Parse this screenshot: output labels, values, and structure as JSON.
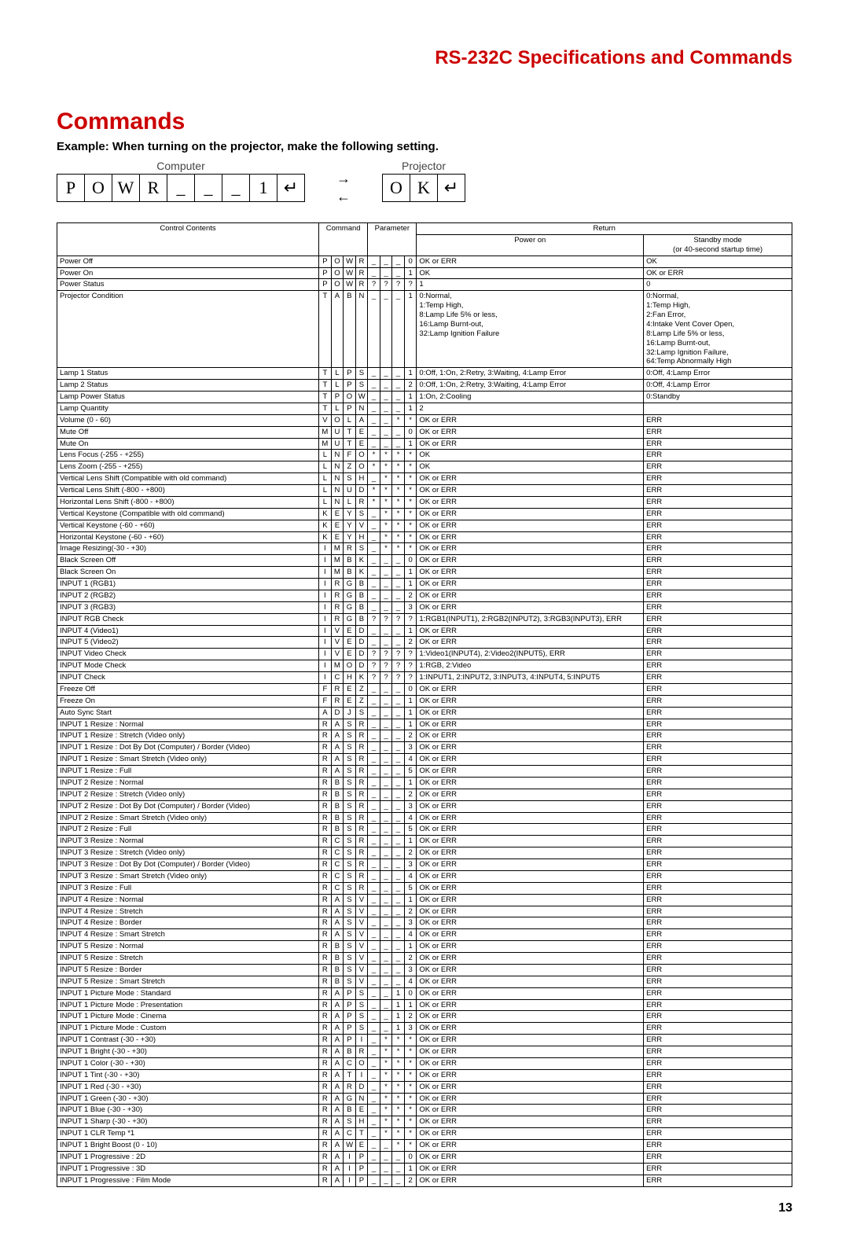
{
  "header": "RS-232C Specifications and Commands",
  "section_title": "Commands",
  "example_line": "Example: When turning on the projector, make the following setting.",
  "diagram": {
    "computer_label": "Computer",
    "projector_label": "Projector",
    "computer_boxes": [
      "P",
      "O",
      "W",
      "R",
      "_",
      "_",
      "_",
      "1",
      "↵"
    ],
    "projector_boxes": [
      "O",
      "K",
      "↵"
    ]
  },
  "table_headers": {
    "control": "Control Contents",
    "command": "Command",
    "parameter": "Parameter",
    "return": "Return",
    "power_on": "Power on",
    "standby": "Standby mode\n(or 40-second startup time)"
  },
  "rows": [
    {
      "c": "Power Off",
      "cmd": [
        "P",
        "O",
        "W",
        "R"
      ],
      "par": [
        "_",
        "_",
        "_",
        "0"
      ],
      "pon": "OK or ERR",
      "stb": "OK"
    },
    {
      "c": "Power On",
      "cmd": [
        "P",
        "O",
        "W",
        "R"
      ],
      "par": [
        "_",
        "_",
        "_",
        "1"
      ],
      "pon": "OK",
      "stb": "OK or ERR"
    },
    {
      "c": "Power Status",
      "cmd": [
        "P",
        "O",
        "W",
        "R"
      ],
      "par": [
        "?",
        "?",
        "?",
        "?"
      ],
      "pon": "1",
      "stb": "0"
    },
    {
      "c": "Projector Condition",
      "cmd": [
        "T",
        "A",
        "B",
        "N"
      ],
      "par": [
        "_",
        "_",
        "_",
        "1"
      ],
      "pon": "0:Normal,\n1:Temp High,\n8:Lamp Life 5% or less,\n16:Lamp Burnt-out,\n32:Lamp Ignition Failure",
      "stb": "0:Normal,\n1:Temp High,\n2:Fan Error,\n4:Intake Vent Cover Open,\n8:Lamp Life 5% or less,\n16:Lamp Burnt-out,\n32:Lamp Ignition Failure,\n64:Temp Abnormally High"
    },
    {
      "c": "Lamp 1 Status",
      "cmd": [
        "T",
        "L",
        "P",
        "S"
      ],
      "par": [
        "_",
        "_",
        "_",
        "1"
      ],
      "pon": "0:Off, 1:On, 2:Retry, 3:Waiting, 4:Lamp Error",
      "stb": "0:Off, 4:Lamp Error"
    },
    {
      "c": "Lamp 2 Status",
      "cmd": [
        "T",
        "L",
        "P",
        "S"
      ],
      "par": [
        "_",
        "_",
        "_",
        "2"
      ],
      "pon": "0:Off, 1:On, 2:Retry, 3:Waiting, 4:Lamp Error",
      "stb": "0:Off, 4:Lamp Error"
    },
    {
      "c": "Lamp Power Status",
      "cmd": [
        "T",
        "P",
        "O",
        "W"
      ],
      "par": [
        "_",
        "_",
        "_",
        "1"
      ],
      "pon": "1:On, 2:Cooling",
      "stb": "0:Standby"
    },
    {
      "c": "Lamp Quantity",
      "cmd": [
        "T",
        "L",
        "P",
        "N"
      ],
      "par": [
        "_",
        "_",
        "_",
        "1"
      ],
      "pon": "2",
      "stb": ""
    },
    {
      "c": "Volume (0 - 60)",
      "cmd": [
        "V",
        "O",
        "L",
        "A"
      ],
      "par": [
        "_",
        "_",
        "*",
        "*"
      ],
      "pon": "OK or ERR",
      "stb": "ERR"
    },
    {
      "c": "Mute Off",
      "cmd": [
        "M",
        "U",
        "T",
        "E"
      ],
      "par": [
        "_",
        "_",
        "_",
        "0"
      ],
      "pon": "OK or ERR",
      "stb": "ERR"
    },
    {
      "c": "Mute On",
      "cmd": [
        "M",
        "U",
        "T",
        "E"
      ],
      "par": [
        "_",
        "_",
        "_",
        "1"
      ],
      "pon": "OK or ERR",
      "stb": "ERR"
    },
    {
      "c": "Lens Focus (-255 - +255)",
      "cmd": [
        "L",
        "N",
        "F",
        "O"
      ],
      "par": [
        "*",
        "*",
        "*",
        "*"
      ],
      "pon": "OK",
      "stb": "ERR"
    },
    {
      "c": "Lens Zoom (-255 - +255)",
      "cmd": [
        "L",
        "N",
        "Z",
        "O"
      ],
      "par": [
        "*",
        "*",
        "*",
        "*"
      ],
      "pon": "OK",
      "stb": "ERR"
    },
    {
      "c": "Vertical Lens Shift (Compatible with old command)",
      "cmd": [
        "L",
        "N",
        "S",
        "H"
      ],
      "par": [
        "_",
        "*",
        "*",
        "*"
      ],
      "pon": "OK or ERR",
      "stb": "ERR"
    },
    {
      "c": "Vertical Lens Shift (-800 - +800)",
      "cmd": [
        "L",
        "N",
        "U",
        "D"
      ],
      "par": [
        "*",
        "*",
        "*",
        "*"
      ],
      "pon": "OK or ERR",
      "stb": "ERR"
    },
    {
      "c": "Horizontal Lens Shift (-800 - +800)",
      "cmd": [
        "L",
        "N",
        "L",
        "R"
      ],
      "par": [
        "*",
        "*",
        "*",
        "*"
      ],
      "pon": "OK or ERR",
      "stb": "ERR"
    },
    {
      "c": "Vertical Keystone (Compatible with old command)",
      "cmd": [
        "K",
        "E",
        "Y",
        "S"
      ],
      "par": [
        "_",
        "*",
        "*",
        "*"
      ],
      "pon": "OK or ERR",
      "stb": "ERR"
    },
    {
      "c": "Vertical Keystone (-60 - +60)",
      "cmd": [
        "K",
        "E",
        "Y",
        "V"
      ],
      "par": [
        "_",
        "*",
        "*",
        "*"
      ],
      "pon": "OK or ERR",
      "stb": "ERR"
    },
    {
      "c": "Horizontal Keystone (-60 - +60)",
      "cmd": [
        "K",
        "E",
        "Y",
        "H"
      ],
      "par": [
        "_",
        "*",
        "*",
        "*"
      ],
      "pon": "OK or ERR",
      "stb": "ERR"
    },
    {
      "c": "Image Resizing(-30 - +30)",
      "cmd": [
        "I",
        "M",
        "R",
        "S"
      ],
      "par": [
        "_",
        "*",
        "*",
        "*"
      ],
      "pon": "OK or ERR",
      "stb": "ERR"
    },
    {
      "c": "Black Screen Off",
      "cmd": [
        "I",
        "M",
        "B",
        "K"
      ],
      "par": [
        "_",
        "_",
        "_",
        "0"
      ],
      "pon": "OK or ERR",
      "stb": "ERR"
    },
    {
      "c": "Black Screen On",
      "cmd": [
        "I",
        "M",
        "B",
        "K"
      ],
      "par": [
        "_",
        "_",
        "_",
        "1"
      ],
      "pon": "OK or ERR",
      "stb": "ERR"
    },
    {
      "c": "INPUT 1 (RGB1)",
      "cmd": [
        "I",
        "R",
        "G",
        "B"
      ],
      "par": [
        "_",
        "_",
        "_",
        "1"
      ],
      "pon": "OK or ERR",
      "stb": "ERR"
    },
    {
      "c": "INPUT 2 (RGB2)",
      "cmd": [
        "I",
        "R",
        "G",
        "B"
      ],
      "par": [
        "_",
        "_",
        "_",
        "2"
      ],
      "pon": "OK or ERR",
      "stb": "ERR"
    },
    {
      "c": "INPUT 3 (RGB3)",
      "cmd": [
        "I",
        "R",
        "G",
        "B"
      ],
      "par": [
        "_",
        "_",
        "_",
        "3"
      ],
      "pon": "OK or ERR",
      "stb": "ERR"
    },
    {
      "c": "INPUT RGB Check",
      "cmd": [
        "I",
        "R",
        "G",
        "B"
      ],
      "par": [
        "?",
        "?",
        "?",
        "?"
      ],
      "pon": "1:RGB1(INPUT1), 2:RGB2(INPUT2), 3:RGB3(INPUT3), ERR",
      "stb": "ERR"
    },
    {
      "c": "INPUT 4 (Video1)",
      "cmd": [
        "I",
        "V",
        "E",
        "D"
      ],
      "par": [
        "_",
        "_",
        "_",
        "1"
      ],
      "pon": "OK or ERR",
      "stb": "ERR"
    },
    {
      "c": "INPUT 5 (Video2)",
      "cmd": [
        "I",
        "V",
        "E",
        "D"
      ],
      "par": [
        "_",
        "_",
        "_",
        "2"
      ],
      "pon": "OK or ERR",
      "stb": "ERR"
    },
    {
      "c": "INPUT Video Check",
      "cmd": [
        "I",
        "V",
        "E",
        "D"
      ],
      "par": [
        "?",
        "?",
        "?",
        "?"
      ],
      "pon": "1:Video1(INPUT4), 2:Video2(INPUT5), ERR",
      "stb": "ERR"
    },
    {
      "c": "INPUT Mode Check",
      "cmd": [
        "I",
        "M",
        "O",
        "D"
      ],
      "par": [
        "?",
        "?",
        "?",
        "?"
      ],
      "pon": "1:RGB, 2:Video",
      "stb": "ERR"
    },
    {
      "c": "INPUT Check",
      "cmd": [
        "I",
        "C",
        "H",
        "K"
      ],
      "par": [
        "?",
        "?",
        "?",
        "?"
      ],
      "pon": "1:INPUT1, 2:INPUT2, 3:INPUT3, 4:INPUT4, 5:INPUT5",
      "stb": "ERR"
    },
    {
      "c": "Freeze Off",
      "cmd": [
        "F",
        "R",
        "E",
        "Z"
      ],
      "par": [
        "_",
        "_",
        "_",
        "0"
      ],
      "pon": "OK or ERR",
      "stb": "ERR"
    },
    {
      "c": "Freeze On",
      "cmd": [
        "F",
        "R",
        "E",
        "Z"
      ],
      "par": [
        "_",
        "_",
        "_",
        "1"
      ],
      "pon": "OK or ERR",
      "stb": "ERR"
    },
    {
      "c": "Auto Sync Start",
      "cmd": [
        "A",
        "D",
        "J",
        "S"
      ],
      "par": [
        "_",
        "_",
        "_",
        "1"
      ],
      "pon": "OK or ERR",
      "stb": "ERR"
    },
    {
      "c": "INPUT 1 Resize : Normal",
      "cmd": [
        "R",
        "A",
        "S",
        "R"
      ],
      "par": [
        "_",
        "_",
        "_",
        "1"
      ],
      "pon": "OK or ERR",
      "stb": "ERR"
    },
    {
      "c": "INPUT 1 Resize : Stretch (Video only)",
      "cmd": [
        "R",
        "A",
        "S",
        "R"
      ],
      "par": [
        "_",
        "_",
        "_",
        "2"
      ],
      "pon": "OK or ERR",
      "stb": "ERR"
    },
    {
      "c": "INPUT 1 Resize : Dot By Dot (Computer) / Border (Video)",
      "cmd": [
        "R",
        "A",
        "S",
        "R"
      ],
      "par": [
        "_",
        "_",
        "_",
        "3"
      ],
      "pon": "OK or ERR",
      "stb": "ERR"
    },
    {
      "c": "INPUT 1 Resize : Smart Stretch (Video only)",
      "cmd": [
        "R",
        "A",
        "S",
        "R"
      ],
      "par": [
        "_",
        "_",
        "_",
        "4"
      ],
      "pon": "OK or ERR",
      "stb": "ERR"
    },
    {
      "c": "INPUT 1 Resize : Full",
      "cmd": [
        "R",
        "A",
        "S",
        "R"
      ],
      "par": [
        "_",
        "_",
        "_",
        "5"
      ],
      "pon": "OK or ERR",
      "stb": "ERR"
    },
    {
      "c": "INPUT 2 Resize : Normal",
      "cmd": [
        "R",
        "B",
        "S",
        "R"
      ],
      "par": [
        "_",
        "_",
        "_",
        "1"
      ],
      "pon": "OK or ERR",
      "stb": "ERR"
    },
    {
      "c": "INPUT 2 Resize : Stretch (Video only)",
      "cmd": [
        "R",
        "B",
        "S",
        "R"
      ],
      "par": [
        "_",
        "_",
        "_",
        "2"
      ],
      "pon": "OK or ERR",
      "stb": "ERR"
    },
    {
      "c": "INPUT 2 Resize : Dot By Dot (Computer) / Border (Video)",
      "cmd": [
        "R",
        "B",
        "S",
        "R"
      ],
      "par": [
        "_",
        "_",
        "_",
        "3"
      ],
      "pon": "OK or ERR",
      "stb": "ERR"
    },
    {
      "c": "INPUT 2 Resize : Smart Stretch (Video only)",
      "cmd": [
        "R",
        "B",
        "S",
        "R"
      ],
      "par": [
        "_",
        "_",
        "_",
        "4"
      ],
      "pon": "OK or ERR",
      "stb": "ERR"
    },
    {
      "c": "INPUT 2 Resize : Full",
      "cmd": [
        "R",
        "B",
        "S",
        "R"
      ],
      "par": [
        "_",
        "_",
        "_",
        "5"
      ],
      "pon": "OK or ERR",
      "stb": "ERR"
    },
    {
      "c": "INPUT 3 Resize : Normal",
      "cmd": [
        "R",
        "C",
        "S",
        "R"
      ],
      "par": [
        "_",
        "_",
        "_",
        "1"
      ],
      "pon": "OK or ERR",
      "stb": "ERR"
    },
    {
      "c": "INPUT 3 Resize : Stretch (Video only)",
      "cmd": [
        "R",
        "C",
        "S",
        "R"
      ],
      "par": [
        "_",
        "_",
        "_",
        "2"
      ],
      "pon": "OK or ERR",
      "stb": "ERR"
    },
    {
      "c": "INPUT 3 Resize : Dot By Dot (Computer) / Border (Video)",
      "cmd": [
        "R",
        "C",
        "S",
        "R"
      ],
      "par": [
        "_",
        "_",
        "_",
        "3"
      ],
      "pon": "OK or ERR",
      "stb": "ERR"
    },
    {
      "c": "INPUT 3 Resize : Smart Stretch (Video only)",
      "cmd": [
        "R",
        "C",
        "S",
        "R"
      ],
      "par": [
        "_",
        "_",
        "_",
        "4"
      ],
      "pon": "OK or ERR",
      "stb": "ERR"
    },
    {
      "c": "INPUT 3 Resize : Full",
      "cmd": [
        "R",
        "C",
        "S",
        "R"
      ],
      "par": [
        "_",
        "_",
        "_",
        "5"
      ],
      "pon": "OK or ERR",
      "stb": "ERR"
    },
    {
      "c": "INPUT 4 Resize : Normal",
      "cmd": [
        "R",
        "A",
        "S",
        "V"
      ],
      "par": [
        "_",
        "_",
        "_",
        "1"
      ],
      "pon": "OK or ERR",
      "stb": "ERR"
    },
    {
      "c": "INPUT 4 Resize : Stretch",
      "cmd": [
        "R",
        "A",
        "S",
        "V"
      ],
      "par": [
        "_",
        "_",
        "_",
        "2"
      ],
      "pon": "OK or ERR",
      "stb": "ERR"
    },
    {
      "c": "INPUT 4 Resize : Border",
      "cmd": [
        "R",
        "A",
        "S",
        "V"
      ],
      "par": [
        "_",
        "_",
        "_",
        "3"
      ],
      "pon": "OK or ERR",
      "stb": "ERR"
    },
    {
      "c": "INPUT 4 Resize : Smart Stretch",
      "cmd": [
        "R",
        "A",
        "S",
        "V"
      ],
      "par": [
        "_",
        "_",
        "_",
        "4"
      ],
      "pon": "OK or ERR",
      "stb": "ERR"
    },
    {
      "c": "INPUT 5 Resize : Normal",
      "cmd": [
        "R",
        "B",
        "S",
        "V"
      ],
      "par": [
        "_",
        "_",
        "_",
        "1"
      ],
      "pon": "OK or ERR",
      "stb": "ERR"
    },
    {
      "c": "INPUT 5 Resize : Stretch",
      "cmd": [
        "R",
        "B",
        "S",
        "V"
      ],
      "par": [
        "_",
        "_",
        "_",
        "2"
      ],
      "pon": "OK or ERR",
      "stb": "ERR"
    },
    {
      "c": "INPUT 5 Resize : Border",
      "cmd": [
        "R",
        "B",
        "S",
        "V"
      ],
      "par": [
        "_",
        "_",
        "_",
        "3"
      ],
      "pon": "OK or ERR",
      "stb": "ERR"
    },
    {
      "c": "INPUT 5 Resize : Smart Stretch",
      "cmd": [
        "R",
        "B",
        "S",
        "V"
      ],
      "par": [
        "_",
        "_",
        "_",
        "4"
      ],
      "pon": "OK or ERR",
      "stb": "ERR"
    },
    {
      "c": "INPUT 1 Picture Mode : Standard",
      "cmd": [
        "R",
        "A",
        "P",
        "S"
      ],
      "par": [
        "_",
        "_",
        "1",
        "0"
      ],
      "pon": "OK or ERR",
      "stb": "ERR"
    },
    {
      "c": "INPUT 1 Picture Mode : Presentation",
      "cmd": [
        "R",
        "A",
        "P",
        "S"
      ],
      "par": [
        "_",
        "_",
        "1",
        "1"
      ],
      "pon": "OK or ERR",
      "stb": "ERR"
    },
    {
      "c": "INPUT 1 Picture Mode : Cinema",
      "cmd": [
        "R",
        "A",
        "P",
        "S"
      ],
      "par": [
        "_",
        "_",
        "1",
        "2"
      ],
      "pon": "OK or ERR",
      "stb": "ERR"
    },
    {
      "c": "INPUT 1 Picture Mode : Custom",
      "cmd": [
        "R",
        "A",
        "P",
        "S"
      ],
      "par": [
        "_",
        "_",
        "1",
        "3"
      ],
      "pon": "OK or ERR",
      "stb": "ERR"
    },
    {
      "c": "INPUT 1 Contrast (-30 - +30)",
      "cmd": [
        "R",
        "A",
        "P",
        "I"
      ],
      "par": [
        "_",
        "*",
        "*",
        "*"
      ],
      "pon": "OK or ERR",
      "stb": "ERR"
    },
    {
      "c": "INPUT 1 Bright (-30 - +30)",
      "cmd": [
        "R",
        "A",
        "B",
        "R"
      ],
      "par": [
        "_",
        "*",
        "*",
        "*"
      ],
      "pon": "OK or ERR",
      "stb": "ERR"
    },
    {
      "c": "INPUT 1 Color (-30 - +30)",
      "cmd": [
        "R",
        "A",
        "C",
        "O"
      ],
      "par": [
        "_",
        "*",
        "*",
        "*"
      ],
      "pon": "OK or ERR",
      "stb": "ERR"
    },
    {
      "c": "INPUT 1 Tint (-30 - +30)",
      "cmd": [
        "R",
        "A",
        "T",
        "I"
      ],
      "par": [
        "_",
        "*",
        "*",
        "*"
      ],
      "pon": "OK or ERR",
      "stb": "ERR"
    },
    {
      "c": "INPUT 1 Red (-30 - +30)",
      "cmd": [
        "R",
        "A",
        "R",
        "D"
      ],
      "par": [
        "_",
        "*",
        "*",
        "*"
      ],
      "pon": "OK or ERR",
      "stb": "ERR"
    },
    {
      "c": "INPUT 1 Green (-30 - +30)",
      "cmd": [
        "R",
        "A",
        "G",
        "N"
      ],
      "par": [
        "_",
        "*",
        "*",
        "*"
      ],
      "pon": "OK or ERR",
      "stb": "ERR"
    },
    {
      "c": "INPUT 1 Blue (-30 - +30)",
      "cmd": [
        "R",
        "A",
        "B",
        "E"
      ],
      "par": [
        "_",
        "*",
        "*",
        "*"
      ],
      "pon": "OK or ERR",
      "stb": "ERR"
    },
    {
      "c": "INPUT 1 Sharp (-30 - +30)",
      "cmd": [
        "R",
        "A",
        "S",
        "H"
      ],
      "par": [
        "_",
        "*",
        "*",
        "*"
      ],
      "pon": "OK or ERR",
      "stb": "ERR"
    },
    {
      "c": "INPUT 1 CLR Temp *1",
      "cmd": [
        "R",
        "A",
        "C",
        "T"
      ],
      "par": [
        "_",
        "*",
        "*",
        "*"
      ],
      "pon": "OK or ERR",
      "stb": "ERR"
    },
    {
      "c": "INPUT 1 Bright Boost (0 - 10)",
      "cmd": [
        "R",
        "A",
        "W",
        "E"
      ],
      "par": [
        "_",
        "_",
        "*",
        "*"
      ],
      "pon": "OK or ERR",
      "stb": "ERR"
    },
    {
      "c": "INPUT 1 Progressive : 2D",
      "cmd": [
        "R",
        "A",
        "I",
        "P"
      ],
      "par": [
        "_",
        "_",
        "_",
        "0"
      ],
      "pon": "OK or ERR",
      "stb": "ERR"
    },
    {
      "c": "INPUT 1 Progressive : 3D",
      "cmd": [
        "R",
        "A",
        "I",
        "P"
      ],
      "par": [
        "_",
        "_",
        "_",
        "1"
      ],
      "pon": "OK or ERR",
      "stb": "ERR"
    },
    {
      "c": "INPUT 1 Progressive : Film Mode",
      "cmd": [
        "R",
        "A",
        "I",
        "P"
      ],
      "par": [
        "_",
        "_",
        "_",
        "2"
      ],
      "pon": "OK or ERR",
      "stb": "ERR"
    }
  ],
  "page_number": "13",
  "colors": {
    "accent": "#cc0000",
    "border": "#000000"
  }
}
